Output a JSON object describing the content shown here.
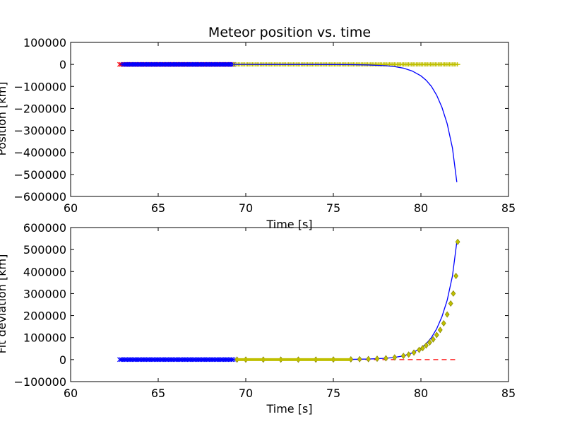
{
  "chart_data": [
    {
      "type": "line",
      "title": "Meteor position vs. time",
      "xlabel": "Time [s]",
      "ylabel": "Position [km]",
      "xlim": [
        60,
        85
      ],
      "ylim": [
        -600000,
        100000
      ],
      "xticks": [
        60,
        65,
        70,
        75,
        80,
        85
      ],
      "xtick_labels": [
        "60",
        "65",
        "70",
        "75",
        "80",
        "85"
      ],
      "yticks": [
        100000,
        0,
        -100000,
        -200000,
        -300000,
        -400000,
        -500000,
        -600000
      ],
      "ytick_labels": [
        "100000",
        "0",
        "−100000",
        "−200000",
        "−300000",
        "−400000",
        "−500000",
        "−600000"
      ],
      "grid": false,
      "series": [
        {
          "color": "#ff0000",
          "marker": "x",
          "x_range": [
            62.8,
            69.3
          ],
          "value": 0
        },
        {
          "color": "#0000ff",
          "marker": "x",
          "x_range": [
            63.0,
            69.3
          ],
          "value": 0
        },
        {
          "color": "#bfbf00",
          "marker": "+",
          "x_range": [
            69.3,
            82.1
          ],
          "value": 0
        },
        {
          "color": "#0000ff",
          "marker": "line",
          "x": [
            62.8,
            70,
            74,
            76,
            77,
            78,
            78.5,
            79,
            79.5,
            80,
            80.3,
            80.6,
            80.9,
            81.2,
            81.5,
            81.8,
            82.05
          ],
          "y": [
            0,
            0,
            -200,
            -1000,
            -2500,
            -6000,
            -10000,
            -17000,
            -30000,
            -52000,
            -72000,
            -100000,
            -140000,
            -195000,
            -270000,
            -380000,
            -535000
          ]
        }
      ]
    },
    {
      "type": "line",
      "title": "",
      "xlabel": "Time [s]",
      "ylabel": "Fit deviation [km]",
      "xlim": [
        60,
        85
      ],
      "ylim": [
        -100000,
        600000
      ],
      "xticks": [
        60,
        65,
        70,
        75,
        80,
        85
      ],
      "xtick_labels": [
        "60",
        "65",
        "70",
        "75",
        "80",
        "85"
      ],
      "yticks": [
        600000,
        500000,
        400000,
        300000,
        200000,
        100000,
        0,
        -100000
      ],
      "ytick_labels": [
        "600000",
        "500000",
        "400000",
        "300000",
        "200000",
        "100000",
        "0",
        "−100000"
      ],
      "grid": false,
      "series": [
        {
          "color": "#ff0000",
          "marker": "dashed-line",
          "x": [
            62.8,
            82.1
          ],
          "y": [
            0,
            0
          ]
        },
        {
          "color": "#0000ff",
          "marker": "x",
          "x_range": [
            62.8,
            69.3
          ],
          "value": 0
        },
        {
          "color": "#0000ff",
          "marker": "line",
          "x": [
            62.8,
            70,
            74,
            76,
            77,
            78,
            78.5,
            79,
            79.5,
            80,
            80.3,
            80.6,
            80.9,
            81.2,
            81.5,
            81.8,
            82.05
          ],
          "y": [
            0,
            0,
            200,
            1000,
            2500,
            6000,
            10000,
            17000,
            30000,
            52000,
            72000,
            100000,
            140000,
            195000,
            270000,
            380000,
            535000
          ]
        },
        {
          "color": "#bfbf00",
          "marker": "diamond",
          "x": [
            69.5,
            70,
            71,
            72,
            73,
            74,
            75,
            76,
            76.5,
            77,
            77.5,
            78,
            78.5,
            79,
            79.3,
            79.6,
            79.9,
            80.1,
            80.3,
            80.5,
            80.7,
            80.9,
            81.1,
            81.3,
            81.5,
            81.7,
            81.85,
            82.0,
            82.1
          ],
          "y": [
            0,
            0,
            0,
            0,
            0,
            0,
            500,
            1200,
            1800,
            2500,
            3800,
            6000,
            10000,
            17000,
            23000,
            32000,
            44000,
            52000,
            64000,
            78000,
            92000,
            112000,
            135000,
            165000,
            205000,
            255000,
            300000,
            380000,
            535000
          ]
        }
      ]
    }
  ]
}
